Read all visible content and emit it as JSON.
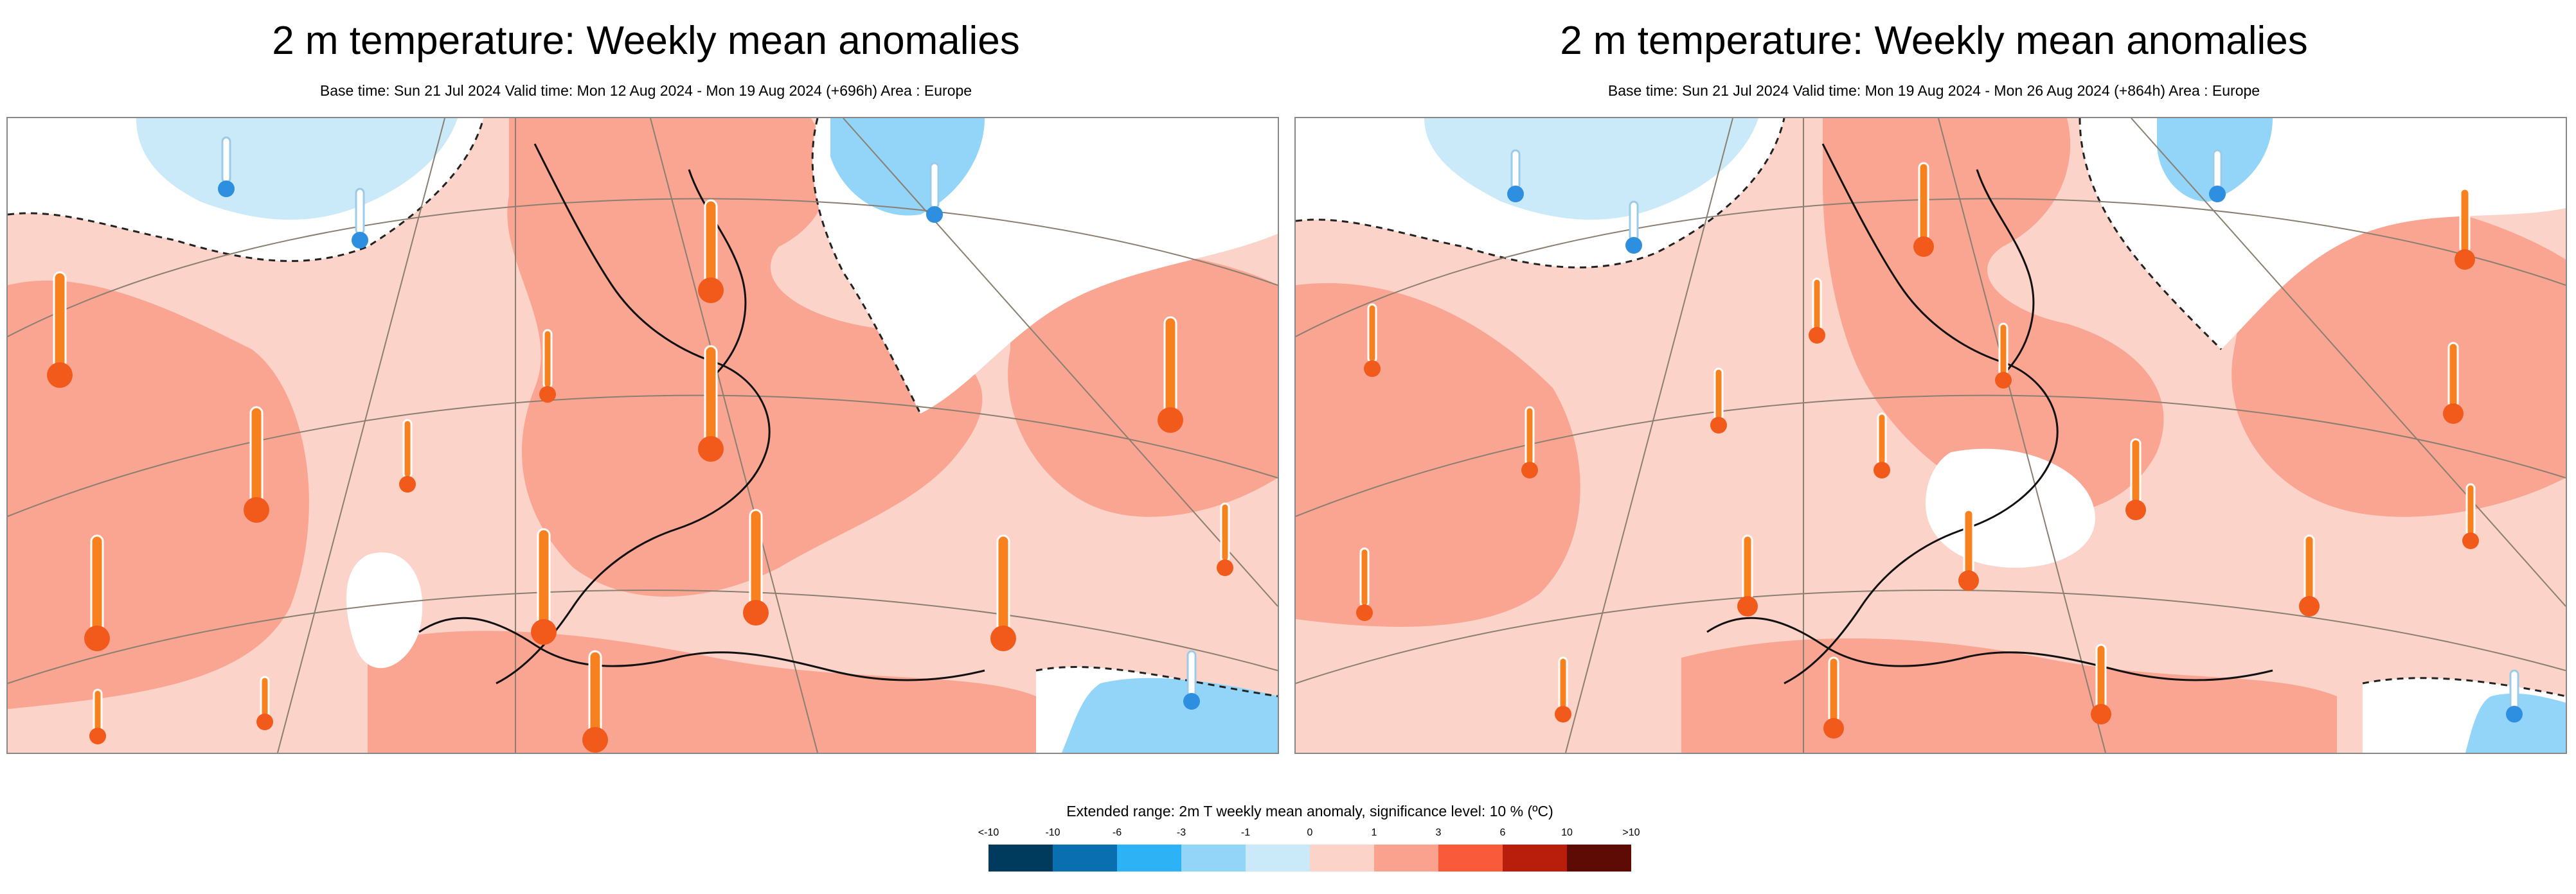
{
  "panels": [
    {
      "title": "2 m temperature: Weekly mean anomalies",
      "subtitle": "Base time: Sun 21 Jul 2024 Valid time: Mon 12 Aug 2024 - Mon 19 Aug 2024 (+696h) Area : Europe"
    },
    {
      "title": "2 m temperature: Weekly mean anomalies",
      "subtitle": "Base time: Sun 21 Jul 2024 Valid time: Mon 19 Aug 2024 - Mon 26 Aug 2024 (+864h) Area : Europe"
    }
  ],
  "legend": {
    "title": "Extended range: 2m T weekly mean anomaly, significance level: 10 % (ºC)",
    "ticks": [
      "<-10",
      "-10",
      "-6",
      "-3",
      "-1",
      "0",
      "1",
      "3",
      "6",
      "10",
      ">10"
    ],
    "colors": [
      "#003a5c",
      "#0a6fb0",
      "#2db3f5",
      "#92d5f9",
      "#caeaf9",
      "#fcd3c9",
      "#fba28f",
      "#f85a3a",
      "#b81e0b",
      "#5e0b05"
    ]
  },
  "colors": {
    "warm_light": "#fcd3c9",
    "warm_mid": "#f9a592",
    "cold_light": "#caeaf9",
    "cold_mid": "#92d5f9",
    "neutral": "#ffffff",
    "thermo_warm": "#f7801f",
    "thermo_cold": "#2e8fe0"
  },
  "icons": [
    "thermometer-warm-icon",
    "thermometer-cold-icon"
  ]
}
